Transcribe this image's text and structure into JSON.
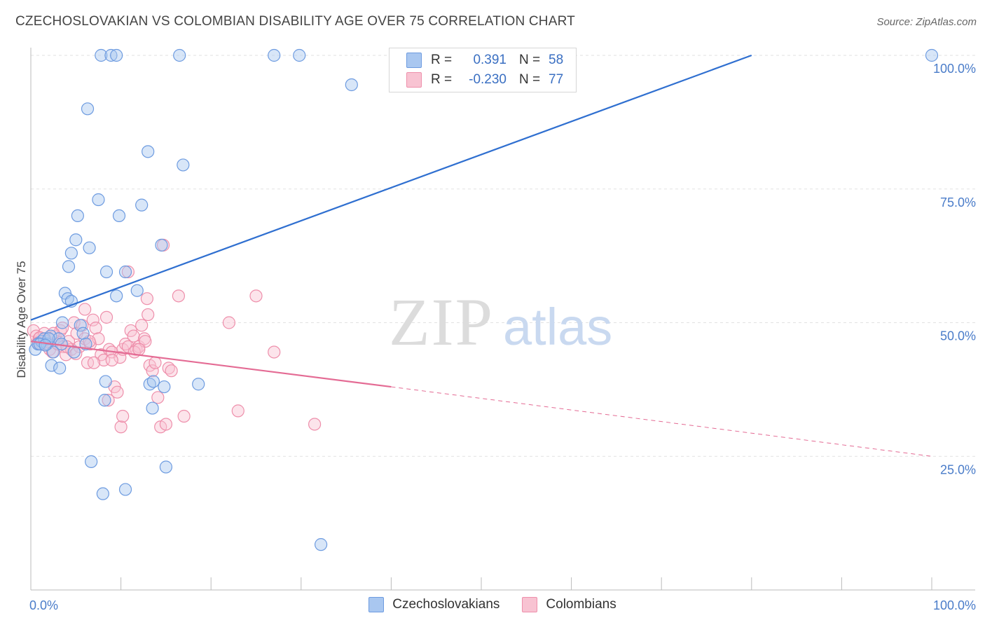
{
  "title": "CZECHOSLOVAKIAN VS COLOMBIAN DISABILITY AGE OVER 75 CORRELATION CHART",
  "source": "Source: ZipAtlas.com",
  "watermark": {
    "zip": "ZIP",
    "atlas": "atlas"
  },
  "legend": {
    "rows": [
      {
        "r_label": "R =",
        "r_value": "0.391",
        "n_label": "N =",
        "n_value": "58",
        "color": "#a9c7f0",
        "border": "#6d9be0"
      },
      {
        "r_label": "R =",
        "r_value": "-0.230",
        "n_label": "N =",
        "n_value": "77",
        "color": "#f8c3d2",
        "border": "#ee8fab"
      }
    ]
  },
  "bottom_legend": [
    {
      "label": "Czechoslovakians",
      "color": "#a9c7f0",
      "border": "#6d9be0"
    },
    {
      "label": "Colombians",
      "color": "#f8c3d2",
      "border": "#ee8fab"
    }
  ],
  "chart_data": {
    "type": "scatter",
    "title": "CZECHOSLOVAKIAN VS COLOMBIAN DISABILITY AGE OVER 75 CORRELATION CHART",
    "xlabel": "",
    "ylabel": "Disability Age Over 75",
    "xlim": [
      0,
      100
    ],
    "ylim": [
      0,
      100
    ],
    "x_ticks": [
      "0.0%",
      "100.0%"
    ],
    "y_ticks": [
      {
        "value": 25,
        "label": "25.0%"
      },
      {
        "value": 50,
        "label": "50.0%"
      },
      {
        "value": 75,
        "label": "75.0%"
      },
      {
        "value": 100,
        "label": "100.0%"
      }
    ],
    "grid": true,
    "series": [
      {
        "name": "Czechoslovakians",
        "color": "#6d9be0",
        "fill": "#a9c7f0",
        "trend": {
          "x": [
            0,
            80
          ],
          "y": [
            50.5,
            100
          ],
          "color": "#2f6fd0"
        },
        "points": [
          [
            0.5,
            45
          ],
          [
            0.8,
            46
          ],
          [
            1.2,
            46.5
          ],
          [
            1.5,
            47
          ],
          [
            1.8,
            46
          ],
          [
            2.2,
            47.5
          ],
          [
            2.5,
            44.5
          ],
          [
            2.3,
            42
          ],
          [
            3.1,
            47
          ],
          [
            3.4,
            46
          ],
          [
            3.2,
            41.5
          ],
          [
            3.5,
            50
          ],
          [
            3.8,
            55.5
          ],
          [
            4.1,
            54.5
          ],
          [
            4.5,
            54
          ],
          [
            4.8,
            44.5
          ],
          [
            5.0,
            65.5
          ],
          [
            5.5,
            49.5
          ],
          [
            5.8,
            48
          ],
          [
            6.1,
            46
          ],
          [
            6.5,
            64
          ],
          [
            4.2,
            60.5
          ],
          [
            4.5,
            63
          ],
          [
            5.2,
            70
          ],
          [
            7.5,
            73
          ],
          [
            8.4,
            59.5
          ],
          [
            8.3,
            39
          ],
          [
            8.2,
            35.5
          ],
          [
            9.5,
            55
          ],
          [
            9.8,
            70
          ],
          [
            10.5,
            59.5
          ],
          [
            11.8,
            56
          ],
          [
            12.3,
            72
          ],
          [
            13.0,
            82
          ],
          [
            13.2,
            38.5
          ],
          [
            13.5,
            34
          ],
          [
            13.6,
            39
          ],
          [
            14.5,
            64.5
          ],
          [
            14.8,
            38
          ],
          [
            15.0,
            23
          ],
          [
            16.9,
            79.5
          ],
          [
            18.6,
            38.5
          ],
          [
            6.7,
            24
          ],
          [
            8.0,
            18
          ],
          [
            10.5,
            18.8
          ],
          [
            32.2,
            8.5
          ],
          [
            7.8,
            100
          ],
          [
            8.9,
            100
          ],
          [
            9.5,
            100
          ],
          [
            16.5,
            100
          ],
          [
            27.0,
            100
          ],
          [
            29.8,
            100
          ],
          [
            35.6,
            94.5
          ],
          [
            6.3,
            90
          ],
          [
            100,
            100
          ],
          [
            1.0,
            46
          ],
          [
            2.0,
            47
          ],
          [
            1.6,
            45.8
          ]
        ]
      },
      {
        "name": "Colombians",
        "color": "#ee8fab",
        "fill": "#f8c3d2",
        "trend": {
          "x": [
            0,
            40
          ],
          "y": [
            46.5,
            38
          ],
          "color": "#e46b94",
          "dashed_to": {
            "x": 100,
            "y": 25
          }
        },
        "points": [
          [
            0.3,
            48.5
          ],
          [
            0.6,
            47.5
          ],
          [
            0.9,
            47
          ],
          [
            1.2,
            46
          ],
          [
            1.5,
            48
          ],
          [
            1.8,
            46.5
          ],
          [
            2.1,
            45
          ],
          [
            2.4,
            44.5
          ],
          [
            2.7,
            47.5
          ],
          [
            3.0,
            46
          ],
          [
            3.3,
            48.5
          ],
          [
            3.6,
            45.5
          ],
          [
            3.9,
            44
          ],
          [
            4.2,
            46.5
          ],
          [
            4.5,
            45
          ],
          [
            4.8,
            50
          ],
          [
            5.1,
            48
          ],
          [
            5.4,
            45.5
          ],
          [
            5.7,
            49.5
          ],
          [
            6.0,
            47
          ],
          [
            6.3,
            42.5
          ],
          [
            6.6,
            46
          ],
          [
            6.9,
            50.5
          ],
          [
            7.2,
            49
          ],
          [
            7.5,
            47
          ],
          [
            7.8,
            44
          ],
          [
            8.1,
            43
          ],
          [
            8.4,
            51
          ],
          [
            8.7,
            45
          ],
          [
            9.0,
            44.5
          ],
          [
            9.3,
            38
          ],
          [
            9.6,
            37
          ],
          [
            9.9,
            43.5
          ],
          [
            10.2,
            45
          ],
          [
            10.5,
            46
          ],
          [
            10.8,
            45.5
          ],
          [
            11.1,
            48.5
          ],
          [
            11.4,
            47.5
          ],
          [
            11.7,
            45
          ],
          [
            12.0,
            45.5
          ],
          [
            12.3,
            49.5
          ],
          [
            12.6,
            47
          ],
          [
            12.9,
            54.5
          ],
          [
            13.2,
            42
          ],
          [
            13.5,
            41
          ],
          [
            13.8,
            42.5
          ],
          [
            14.1,
            36
          ],
          [
            14.4,
            30.5
          ],
          [
            14.7,
            64.5
          ],
          [
            15.0,
            31
          ],
          [
            15.3,
            41.5
          ],
          [
            15.6,
            41
          ],
          [
            6.0,
            52.5
          ],
          [
            8.6,
            35.5
          ],
          [
            10.0,
            30.5
          ],
          [
            10.2,
            32.5
          ],
          [
            10.8,
            59.5
          ],
          [
            12.7,
            46.5
          ],
          [
            16.4,
            55
          ],
          [
            17.0,
            32.5
          ],
          [
            22.0,
            50
          ],
          [
            23.0,
            33.5
          ],
          [
            25.0,
            55
          ],
          [
            27.0,
            44.5
          ],
          [
            31.5,
            31
          ],
          [
            7.0,
            42.5
          ],
          [
            9.0,
            43
          ],
          [
            11.5,
            44.5
          ],
          [
            12.0,
            45
          ],
          [
            13.0,
            51.5
          ],
          [
            4.0,
            45.5
          ],
          [
            3.5,
            49
          ],
          [
            2.5,
            48
          ],
          [
            1.0,
            47.2
          ],
          [
            0.8,
            46.2
          ],
          [
            5.0,
            44.2
          ],
          [
            6.5,
            46.5
          ]
        ]
      }
    ]
  }
}
